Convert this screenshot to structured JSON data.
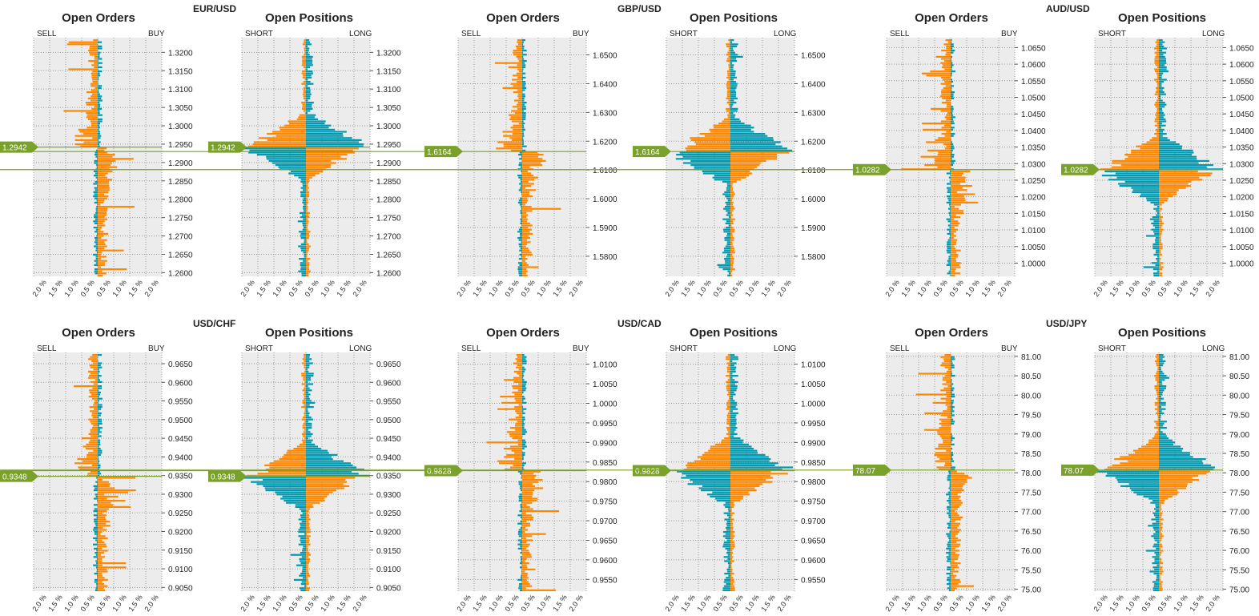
{
  "colors": {
    "orange": "#ff8800",
    "teal": "#0099b0",
    "green": "#7aa12a",
    "panel": "#ececec",
    "grid": "#9a9a9a",
    "text": "#222222"
  },
  "pairs": [
    {
      "name": "EUR/USD",
      "price_label": "1.2942",
      "price": 1.2942,
      "ticks": [
        "1.2600",
        "1.2650",
        "1.2700",
        "1.2750",
        "1.2800",
        "1.2850",
        "1.2900",
        "1.2950",
        "1.3000",
        "1.3050",
        "1.3100",
        "1.3150",
        "1.3200"
      ],
      "y_range": [
        1.259,
        1.324
      ]
    },
    {
      "name": "GBP/USD",
      "price_label": "1.6164",
      "price": 1.6164,
      "ticks": [
        "1.5800",
        "1.5900",
        "1.6000",
        "1.6100",
        "1.6200",
        "1.6300",
        "1.6400",
        "1.6500"
      ],
      "y_range": [
        1.573,
        1.656
      ]
    },
    {
      "name": "AUD/USD",
      "price_label": "1.0282",
      "price": 1.0282,
      "ticks": [
        "1.0000",
        "1.0050",
        "1.0100",
        "1.0150",
        "1.0200",
        "1.0250",
        "1.0300",
        "1.0350",
        "1.0400",
        "1.0450",
        "1.0500",
        "1.0550",
        "1.0600",
        "1.0650"
      ],
      "y_range": [
        0.996,
        1.068
      ]
    },
    {
      "name": "USD/CHF",
      "price_label": "0.9348",
      "price": 0.9348,
      "ticks": [
        "0.9050",
        "0.9100",
        "0.9150",
        "0.9200",
        "0.9250",
        "0.9300",
        "0.9350",
        "0.9400",
        "0.9450",
        "0.9500",
        "0.9550",
        "0.9600",
        "0.9650"
      ],
      "y_range": [
        0.904,
        0.968
      ]
    },
    {
      "name": "USD/CAD",
      "price_label": "0.9828",
      "price": 0.9828,
      "ticks": [
        "0.9550",
        "0.9600",
        "0.9650",
        "0.9700",
        "0.9750",
        "0.9800",
        "0.9850",
        "0.9900",
        "0.9950",
        "1.0000",
        "1.0050",
        "1.0100"
      ],
      "y_range": [
        0.952,
        1.013
      ]
    },
    {
      "name": "USD/JPY",
      "price_label": "78.07",
      "price": 78.07,
      "ticks": [
        "75.00",
        "75.50",
        "76.00",
        "76.50",
        "77.00",
        "77.50",
        "78.00",
        "78.50",
        "79.00",
        "79.50",
        "80.00",
        "80.50",
        "81.00"
      ],
      "y_range": [
        74.95,
        81.1
      ]
    }
  ],
  "panel_titles": {
    "orders": "Open Orders",
    "positions": "Open Positions"
  },
  "side_labels": {
    "orders_left": "SELL",
    "orders_right": "BUY",
    "positions_left": "SHORT",
    "positions_right": "LONG"
  },
  "x_ticks": [
    "2.0 %",
    "1.5 %",
    "1.0 %",
    "0.5 %",
    "0.5 %",
    "1.0 %",
    "1.5 %",
    "2.0 %"
  ],
  "chart_data": [
    {
      "type": "bar",
      "pair": "EUR/USD",
      "chart": "Open Orders",
      "x_labels": [
        "2.0 %",
        "1.5 %",
        "1.0 %",
        "0.5 %",
        "0.5 %",
        "1.0 %",
        "1.5 %",
        "2.0 %"
      ],
      "x_range": [
        -2.0,
        2.0
      ],
      "price_line": 1.2942,
      "series": [
        {
          "name": "SELL",
          "color": "#0099b0",
          "side": "left"
        },
        {
          "name": "BUY",
          "color": "#ff8800",
          "side": "right"
        }
      ]
    },
    {
      "type": "bar",
      "pair": "EUR/USD",
      "chart": "Open Positions",
      "x_labels": [
        "2.0 %",
        "1.5 %",
        "1.0 %",
        "0.5 %",
        "0.5 %",
        "1.0 %",
        "1.5 %",
        "2.0 %"
      ],
      "x_range": [
        -2.0,
        2.0
      ],
      "price_line": 1.2942,
      "series": [
        {
          "name": "SHORT",
          "side": "left"
        },
        {
          "name": "LONG",
          "side": "right"
        }
      ]
    },
    {
      "type": "bar",
      "pair": "GBP/USD",
      "chart": "Open Orders",
      "x_range": [
        -2.0,
        2.0
      ],
      "price_line": 1.6164
    },
    {
      "type": "bar",
      "pair": "GBP/USD",
      "chart": "Open Positions",
      "x_range": [
        -2.0,
        2.0
      ],
      "price_line": 1.6164
    },
    {
      "type": "bar",
      "pair": "AUD/USD",
      "chart": "Open Orders",
      "x_range": [
        -2.0,
        2.0
      ],
      "price_line": 1.0282
    },
    {
      "type": "bar",
      "pair": "AUD/USD",
      "chart": "Open Positions",
      "x_range": [
        -2.0,
        2.0
      ],
      "price_line": 1.0282
    },
    {
      "type": "bar",
      "pair": "USD/CHF",
      "chart": "Open Orders",
      "x_range": [
        -2.0,
        2.0
      ],
      "price_line": 0.9348
    },
    {
      "type": "bar",
      "pair": "USD/CHF",
      "chart": "Open Positions",
      "x_range": [
        -2.0,
        2.0
      ],
      "price_line": 0.9348
    },
    {
      "type": "bar",
      "pair": "USD/CAD",
      "chart": "Open Orders",
      "x_range": [
        -2.0,
        2.0
      ],
      "price_line": 0.9828
    },
    {
      "type": "bar",
      "pair": "USD/CAD",
      "chart": "Open Positions",
      "x_range": [
        -2.0,
        2.0
      ],
      "price_line": 0.9828
    },
    {
      "type": "bar",
      "pair": "USD/JPY",
      "chart": "Open Orders",
      "x_range": [
        -2.0,
        2.0
      ],
      "price_line": 78.07
    },
    {
      "type": "bar",
      "pair": "USD/JPY",
      "chart": "Open Positions",
      "x_range": [
        -2.0,
        2.0
      ],
      "price_line": 78.07
    }
  ]
}
